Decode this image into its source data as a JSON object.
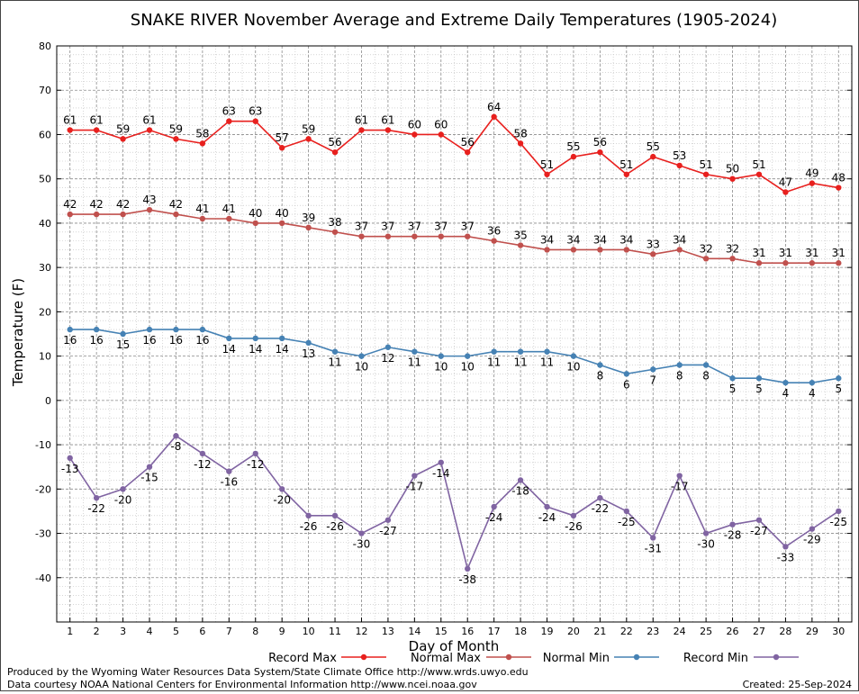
{
  "chart_data": {
    "type": "line",
    "title": "SNAKE RIVER November Average and Extreme Daily Temperatures (1905-2024)",
    "xlabel": "Day of Month",
    "ylabel": "Temperature (F)",
    "ylim": [
      -50,
      80
    ],
    "yticks": [
      -40,
      -30,
      -20,
      -10,
      0,
      10,
      20,
      30,
      40,
      50,
      60,
      70,
      80
    ],
    "x": [
      1,
      2,
      3,
      4,
      5,
      6,
      7,
      8,
      9,
      10,
      11,
      12,
      13,
      14,
      15,
      16,
      17,
      18,
      19,
      20,
      21,
      22,
      23,
      24,
      25,
      26,
      27,
      28,
      29,
      30
    ],
    "grid": true,
    "legend_position": "bottom",
    "series": [
      {
        "name": "Record Max",
        "color": "#e8201e",
        "label_pos": "above",
        "values": [
          61,
          61,
          59,
          61,
          59,
          58,
          63,
          63,
          57,
          59,
          56,
          61,
          61,
          60,
          60,
          56,
          64,
          58,
          51,
          55,
          56,
          51,
          55,
          53,
          51,
          50,
          51,
          47,
          49,
          48
        ]
      },
      {
        "name": "Normal Max",
        "color": "#c0504d",
        "label_pos": "above",
        "values": [
          42,
          42,
          42,
          43,
          42,
          41,
          41,
          40,
          40,
          39,
          38,
          37,
          37,
          37,
          37,
          37,
          36,
          35,
          34,
          34,
          34,
          34,
          33,
          34,
          32,
          32,
          31,
          31,
          31,
          31
        ]
      },
      {
        "name": "Normal Min",
        "color": "#4682b4",
        "label_pos": "below",
        "values": [
          16,
          16,
          15,
          16,
          16,
          16,
          14,
          14,
          14,
          13,
          11,
          10,
          12,
          11,
          10,
          10,
          11,
          11,
          11,
          10,
          8,
          6,
          7,
          8,
          8,
          5,
          5,
          4,
          4,
          5
        ]
      },
      {
        "name": "Record Min",
        "color": "#8064a2",
        "label_pos": "below",
        "values": [
          -13,
          -22,
          -20,
          -15,
          -8,
          -12,
          -16,
          -12,
          -20,
          -26,
          -26,
          -30,
          -27,
          -17,
          -14,
          -38,
          -24,
          -18,
          -24,
          -26,
          -22,
          -25,
          -31,
          -17,
          -30,
          -28,
          -27,
          -33,
          -29,
          -25
        ]
      }
    ]
  },
  "footer": {
    "produced_by": "Produced by the Wyoming Water Resources Data System/State Climate Office http://www.wrds.uwyo.edu",
    "courtesy": "Data courtesy NOAA National Centers for Environmental Information http://www.ncei.noaa.gov",
    "created": "Created: 25-Sep-2024"
  }
}
